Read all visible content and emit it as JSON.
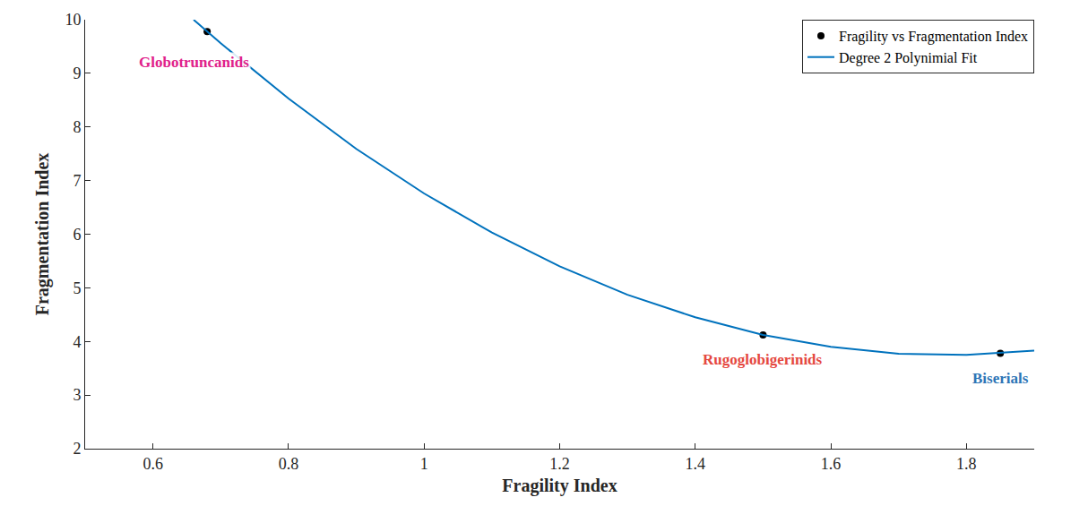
{
  "chart_data": {
    "type": "scatter",
    "xlabel": "Fragility Index",
    "ylabel": "Fragmentation Index",
    "xlim": [
      0.5,
      1.9
    ],
    "xticks": [
      0.6,
      0.8,
      1,
      1.2,
      1.4,
      1.6,
      1.8
    ],
    "ylim": [
      2,
      10
    ],
    "yticks": [
      2,
      3,
      4,
      5,
      6,
      7,
      8,
      9,
      10
    ],
    "grid": false,
    "legend": "top right",
    "series": [
      {
        "name": "Fragility vs Fragmentation Index",
        "type": "scatter",
        "color": "#000000",
        "marker": "circle",
        "x": [
          0.68,
          1.5,
          1.85
        ],
        "values": [
          9.78,
          4.12,
          3.78
        ]
      },
      {
        "name": "Degree 2 Polynimial Fit",
        "type": "line",
        "color": "#0072bd",
        "line_style": "solid",
        "x": [
          0.66,
          0.7,
          0.8,
          0.9,
          1.0,
          1.1,
          1.2,
          1.3,
          1.4,
          1.5,
          1.6,
          1.7,
          1.8,
          1.9
        ],
        "values": [
          10.0,
          9.56,
          8.53,
          7.59,
          6.76,
          6.03,
          5.4,
          4.87,
          4.45,
          4.12,
          3.9,
          3.77,
          3.75,
          3.83
        ]
      }
    ],
    "annotations": [
      {
        "text": "Globotruncanids",
        "x": 0.66,
        "y": 9.4,
        "color": "#e0218a"
      },
      {
        "text": "Rugoglobigerinids",
        "x": 1.5,
        "y": 3.85,
        "color": "#e5483f"
      },
      {
        "text": "Biserials",
        "x": 1.85,
        "y": 3.5,
        "color": "#2e75b6"
      }
    ]
  }
}
